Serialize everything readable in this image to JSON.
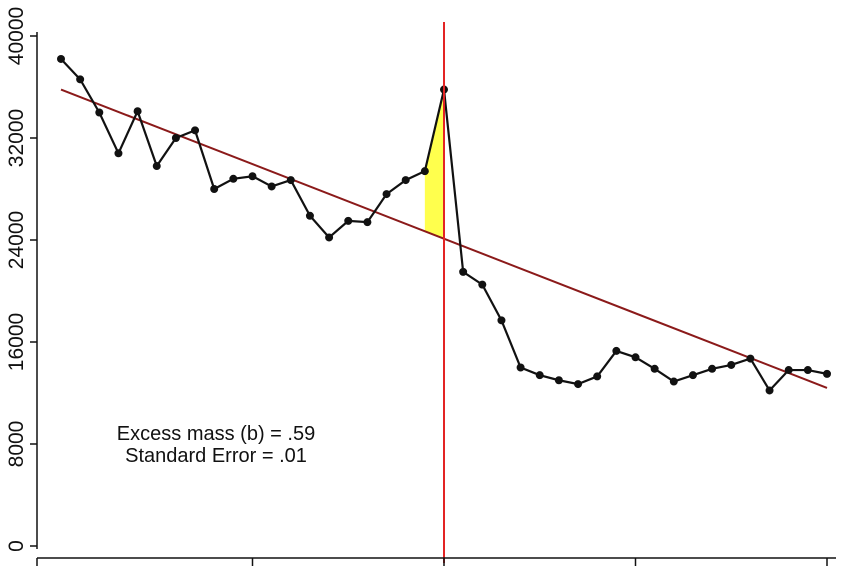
{
  "chart_data": {
    "type": "line",
    "y_ticks": [
      0,
      8000,
      16000,
      24000,
      32000,
      40000
    ],
    "y_tick_labels": [
      "0",
      "8000",
      "16000",
      "24000",
      "32000",
      "40000"
    ],
    "ylim": [
      0,
      40000
    ],
    "xlim": [
      0,
      40
    ],
    "x_ticks": [
      0,
      10,
      20,
      30,
      40
    ],
    "series": [
      {
        "x": [
          0,
          1,
          2,
          3,
          4,
          5,
          6,
          7,
          8,
          9,
          10,
          11,
          12,
          13,
          14,
          15,
          16,
          17,
          18,
          19,
          20,
          21,
          22,
          23,
          24,
          25,
          26,
          27,
          28,
          29,
          30,
          31,
          32,
          33,
          34,
          35,
          36,
          37,
          38,
          39,
          40
        ],
        "values": [
          38200,
          36600,
          34000,
          30800,
          34100,
          29800,
          32000,
          32600,
          28000,
          28800,
          29000,
          28200,
          28700,
          25900,
          24200,
          25500,
          25400,
          27600,
          28700,
          29400,
          35800,
          21500,
          20500,
          17700,
          14000,
          13400,
          13000,
          12700,
          13300,
          15300,
          14800,
          13900,
          12900,
          13400,
          13900,
          14200,
          14700,
          12200,
          13800,
          13800,
          13500
        ]
      }
    ],
    "fit_line": {
      "x": [
        0,
        40
      ],
      "y": [
        35800,
        12400
      ]
    },
    "cutoff_x": 20,
    "excess_region": {
      "x_start": 19,
      "x_end": 20
    },
    "annotation": [
      "Excess mass (b) = .59",
      "Standard Error = .01"
    ],
    "colors": {
      "data": "#111111",
      "fit": "#8b1a1a",
      "cutoff": "#e32424",
      "excess_fill": "#ffff4d"
    }
  }
}
